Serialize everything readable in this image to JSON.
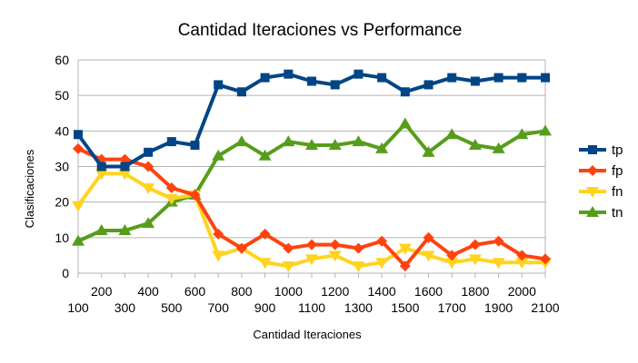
{
  "chart_data": {
    "type": "line",
    "title": "Cantidad Iteraciones vs Performance",
    "xlabel": "Cantidad Iteraciones",
    "ylabel": "Clasificaciones",
    "ylim": [
      0,
      60
    ],
    "yticks": [
      0,
      10,
      20,
      30,
      40,
      50,
      60
    ],
    "grid": true,
    "legend_position": "right",
    "categories": [
      "100",
      "200",
      "300",
      "400",
      "500",
      "600",
      "700",
      "800",
      "900",
      "1000",
      "1100",
      "1200",
      "1300",
      "1400",
      "1500",
      "1600",
      "1700",
      "1800",
      "1900",
      "2000",
      "2100"
    ],
    "series": [
      {
        "name": "tp",
        "color": "#004586",
        "marker": "square",
        "values": [
          39,
          30,
          30,
          34,
          37,
          36,
          53,
          51,
          55,
          56,
          54,
          53,
          56,
          55,
          51,
          53,
          55,
          54,
          55,
          55,
          55
        ]
      },
      {
        "name": "fp",
        "color": "#ff420e",
        "marker": "diamond",
        "values": [
          35,
          32,
          32,
          30,
          24,
          22,
          11,
          7,
          11,
          7,
          8,
          8,
          7,
          9,
          2,
          10,
          5,
          8,
          9,
          5,
          4
        ]
      },
      {
        "name": "fn",
        "color": "#ffd320",
        "marker": "triangle-down",
        "values": [
          19,
          28,
          28,
          24,
          21,
          22,
          5,
          7,
          3,
          2,
          4,
          5,
          2,
          3,
          7,
          5,
          3,
          4,
          3,
          3,
          3
        ]
      },
      {
        "name": "tn",
        "color": "#579d1c",
        "marker": "triangle-up",
        "values": [
          9,
          12,
          12,
          14,
          20,
          22,
          33,
          37,
          33,
          37,
          36,
          36,
          37,
          35,
          42,
          34,
          39,
          36,
          35,
          39,
          40
        ]
      }
    ]
  }
}
